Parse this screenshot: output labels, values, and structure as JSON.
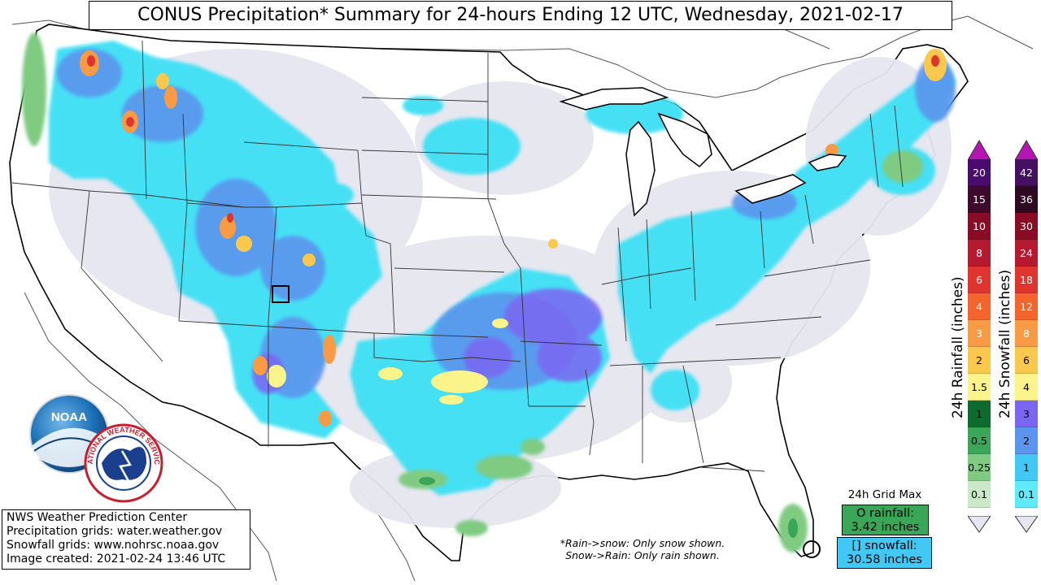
{
  "title": "CONUS Precipitation* Summary for 24-hours Ending 12 UTC, Wednesday, 2021-02-17",
  "info": {
    "line1": "NWS Weather Prediction Center",
    "line2": "Precipitation grids: water.weather.gov",
    "line3": "Snowfall grids: www.nohrsc.noaa.gov",
    "line4": "Image created: 2021-02-24 13:46 UTC"
  },
  "note": {
    "line1": "*Rain->snow: Only snow shown.",
    "line2": "Snow->Rain: Only rain shown."
  },
  "grid_max": {
    "label": "24h Grid Max",
    "rain_line1": "O rainfall:",
    "rain_line2": "3.42 inches",
    "snow_line1": "[] snowfall:",
    "snow_line2": "30.58 inches"
  },
  "rain_legend": {
    "title": "24h Rainfall (inches)",
    "levels": [
      {
        "label": "20",
        "color": "#4a0b6e",
        "text": "#ffffff"
      },
      {
        "label": "15",
        "color": "#3d0a2b",
        "text": "#ffffff"
      },
      {
        "label": "10",
        "color": "#8a0c24",
        "text": "#ffffff"
      },
      {
        "label": "8",
        "color": "#b51a30",
        "text": "#ffffff"
      },
      {
        "label": "6",
        "color": "#e0342e",
        "text": "#ffffff"
      },
      {
        "label": "4",
        "color": "#f4652e",
        "text": "#ffffff"
      },
      {
        "label": "3",
        "color": "#f99b45",
        "text": "#ffffff"
      },
      {
        "label": "2",
        "color": "#fbc84e",
        "text": "#000000"
      },
      {
        "label": "1.5",
        "color": "#faf48a",
        "text": "#000000"
      },
      {
        "label": "1",
        "color": "#0e6b30",
        "text": "#000000"
      },
      {
        "label": "0.5",
        "color": "#3aa657",
        "text": "#000000"
      },
      {
        "label": "0.25",
        "color": "#7fcb82",
        "text": "#000000"
      },
      {
        "label": "0.1",
        "color": "#c9e9c7",
        "text": "#000000"
      }
    ]
  },
  "snow_legend": {
    "title": "24h Snowfall (inches)",
    "levels": [
      {
        "label": "42",
        "color": "#44105f",
        "text": "#ffffff"
      },
      {
        "label": "36",
        "color": "#2d0a22",
        "text": "#ffffff"
      },
      {
        "label": "30",
        "color": "#8a0c24",
        "text": "#ffffff"
      },
      {
        "label": "24",
        "color": "#b51a30",
        "text": "#ffffff"
      },
      {
        "label": "18",
        "color": "#e0342e",
        "text": "#ffffff"
      },
      {
        "label": "12",
        "color": "#f4652e",
        "text": "#ffffff"
      },
      {
        "label": "8",
        "color": "#f99b45",
        "text": "#ffffff"
      },
      {
        "label": "6",
        "color": "#fbc84e",
        "text": "#000000"
      },
      {
        "label": "4",
        "color": "#faf48a",
        "text": "#000000"
      },
      {
        "label": "3",
        "color": "#7b66f2",
        "text": "#000000"
      },
      {
        "label": "2",
        "color": "#5b95ee",
        "text": "#000000"
      },
      {
        "label": "1",
        "color": "#41c8f5",
        "text": "#000000"
      },
      {
        "label": "0.1",
        "color": "#5eeaf8",
        "text": "#000000"
      }
    ]
  },
  "colors": {
    "trace": "#e6e6f0",
    "snow_light": "#44e0f4",
    "snow_mid": "#5b95ee",
    "snow_heavy": "#7b66f2",
    "heavy_yellow": "#faf48a",
    "heavy_orange": "#f99b45",
    "rain_light": "#7fcb82",
    "rain_mid": "#3aa657",
    "logo_noaa": "#1b6fb5",
    "logo_nws": "#c81e2d"
  },
  "logos": {
    "noaa_text": "NOAA",
    "nws_text": "NATIONAL WEATHER SERVICE"
  }
}
